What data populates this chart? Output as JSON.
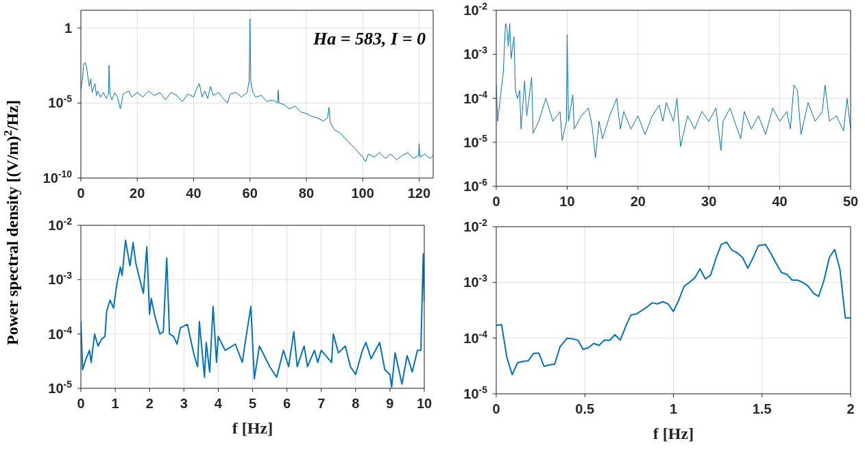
{
  "chart_data": [
    {
      "type": "line",
      "log": "y",
      "grid": true,
      "ylabel": "Power spectral density [(V/m)$^{2}$/Hz]",
      "annotations": [
        "Ha = 583, I = 0"
      ],
      "xlim": [
        0,
        125
      ],
      "xticks": [
        0,
        20,
        40,
        60,
        80,
        100,
        120
      ],
      "ylim": [
        1e-10,
        15
      ],
      "yticks": [
        {
          "value": 1e-10,
          "label": "10$^{-10}$"
        },
        {
          "value": 1e-05,
          "label": "10$^{-5}$"
        },
        1
      ],
      "x": [
        0,
        0.5,
        1,
        1.5,
        2,
        2.5,
        3,
        3.5,
        4,
        5,
        5.5,
        6,
        7,
        8,
        9,
        9.8,
        10,
        10.3,
        11,
        12,
        13,
        14,
        15,
        17,
        18,
        20,
        22,
        24,
        26,
        28,
        30,
        32,
        34,
        36,
        38,
        40,
        41,
        42,
        43,
        44,
        45,
        46,
        47,
        49,
        50,
        52,
        53,
        55,
        57,
        59,
        59.7,
        60,
        60.3,
        61,
        62,
        64,
        66,
        68,
        69.8,
        70,
        70.3,
        72,
        74,
        76,
        78,
        80,
        82,
        84,
        86,
        87.5,
        88,
        88.5,
        90,
        92,
        94,
        96,
        98,
        100,
        101,
        102,
        104,
        106,
        108,
        110,
        112,
        114,
        116,
        118,
        119.8,
        120,
        120.3,
        122,
        124,
        125
      ],
      "series": [
        {
          "color": "#0072bd",
          "values": [
            7.9e-05,
            0.00032,
            0.004,
            0.005,
            0.0025,
            0.0005,
            0.000126,
            0.0004,
            5e-05,
            0.0002,
            3.2e-05,
            6.3e-05,
            2.5e-05,
            5e-05,
            2e-05,
            4e-05,
            0.0032,
            4e-05,
            1.6e-05,
            5e-05,
            2.5e-05,
            4e-06,
            4e-05,
            6.3e-05,
            2.5e-05,
            5e-05,
            2.5e-05,
            6.3e-05,
            3.2e-05,
            5e-05,
            1.6e-05,
            5e-05,
            3.2e-05,
            1.26e-05,
            4e-05,
            2.5e-05,
            7.9e-05,
            0.0002,
            2.5e-05,
            6.3e-05,
            2e-05,
            0.000126,
            3.2e-05,
            5e-05,
            2.5e-05,
            1e-05,
            4e-05,
            5e-05,
            2.5e-05,
            5e-05,
            0.00032,
            4,
            0.00025,
            5e-05,
            2.5e-05,
            3.2e-05,
            1.26e-05,
            1.6e-05,
            1e-05,
            7.1e-05,
            1e-05,
            7.9e-06,
            4e-06,
            6.3e-06,
            2.5e-06,
            2e-06,
            1.26e-06,
            1e-06,
            6.3e-07,
            1e-06,
            5e-06,
            5e-07,
            1.6e-07,
            1e-07,
            4e-08,
            1.6e-08,
            6.3e-09,
            2.5e-09,
            1.26e-09,
            4e-09,
            2.5e-09,
            5e-09,
            2e-09,
            4e-09,
            1.6e-09,
            3.2e-09,
            5e-09,
            2e-09,
            3.2e-09,
            2e-08,
            2.5e-09,
            4e-09,
            2e-09,
            3.2e-09
          ]
        }
      ]
    },
    {
      "type": "line",
      "log": "y",
      "grid": true,
      "xlim": [
        0,
        50
      ],
      "xticks": [
        0,
        10,
        20,
        30,
        40,
        50
      ],
      "ylim": [
        1e-06,
        0.01
      ],
      "yticks": [
        {
          "value": 1e-06,
          "label": "10$^{-6}$"
        },
        {
          "value": 1e-05,
          "label": "10$^{-5}$"
        },
        {
          "value": 0.0001,
          "label": "10$^{-4}$"
        },
        {
          "value": 0.001,
          "label": "10$^{-3}$"
        },
        {
          "value": 0.01,
          "label": "10$^{-2}$"
        }
      ],
      "x": [
        0,
        0.2,
        0.5,
        1,
        1.3,
        1.5,
        1.7,
        1.9,
        2.1,
        2.5,
        2.7,
        3,
        3.3,
        3.5,
        4,
        4.3,
        5,
        5.2,
        6,
        7,
        8,
        9,
        9.3,
        9.9,
        10,
        10.2,
        10.8,
        11,
        12,
        13,
        13.5,
        14,
        14.5,
        15,
        16,
        17,
        17.5,
        18,
        19,
        20,
        21,
        22,
        23,
        23.5,
        24,
        25,
        25.5,
        26,
        27,
        28,
        29,
        30,
        31,
        31.7,
        32,
        33,
        34,
        34.5,
        35,
        36,
        37,
        38,
        39,
        40,
        41,
        41.5,
        42,
        42.5,
        43,
        44,
        45,
        46,
        46.4,
        47,
        48,
        49,
        49.5,
        50
      ],
      "series": [
        {
          "color": "#0072bd",
          "values": [
            0.0002,
            3e-05,
            8e-05,
            0.0004,
            0.005,
            0.004,
            0.0015,
            0.005,
            0.0008,
            0.0025,
            0.00015,
            0.0001,
            0.00015,
            2e-05,
            0.00025,
            4e-05,
            0.0003,
            1.6e-05,
            3e-05,
            0.0001,
            3e-05,
            5e-05,
            1.1e-05,
            3e-05,
            0.0028,
            3e-05,
            0.00012,
            2e-05,
            4e-05,
            6e-05,
            2.5e-05,
            4.5e-06,
            3e-05,
            1.2e-05,
            4e-05,
            0.0001,
            2e-05,
            5e-05,
            2e-05,
            4e-05,
            1.5e-05,
            4e-05,
            7e-05,
            3e-05,
            8e-05,
            3e-05,
            0.0001,
            8e-06,
            4e-05,
            2e-05,
            5e-05,
            3e-05,
            6e-05,
            6.5e-06,
            3e-05,
            6e-05,
            2e-05,
            1.2e-05,
            5e-05,
            2e-05,
            4e-05,
            1.5e-05,
            6e-05,
            3e-05,
            5e-05,
            2e-05,
            0.0002,
            0.00015,
            1.5e-05,
            8e-05,
            3e-05,
            5e-05,
            0.0002,
            3e-05,
            4e-05,
            1.8e-05,
            0.0001,
            2e-05
          ]
        }
      ]
    },
    {
      "type": "line",
      "log": "y",
      "grid": true,
      "xlabel": "f [Hz]",
      "xlim": [
        0,
        10
      ],
      "xticks": [
        0,
        1,
        2,
        3,
        4,
        5,
        6,
        7,
        8,
        9,
        10
      ],
      "ylim": [
        1e-05,
        0.01
      ],
      "yticks": [
        {
          "value": 1e-05,
          "label": "10$^{-5}$"
        },
        {
          "value": 0.0001,
          "label": "10$^{-4}$"
        },
        {
          "value": 0.001,
          "label": "10$^{-3}$"
        },
        {
          "value": 0.01,
          "label": "10$^{-2}$"
        }
      ],
      "x": [
        0,
        0.05,
        0.15,
        0.25,
        0.3,
        0.4,
        0.5,
        0.6,
        0.7,
        0.75,
        0.85,
        0.95,
        1.05,
        1.15,
        1.2,
        1.3,
        1.43,
        1.52,
        1.6,
        1.7,
        1.82,
        1.92,
        2,
        2.05,
        2.15,
        2.3,
        2.4,
        2.5,
        2.58,
        2.7,
        2.8,
        2.9,
        3.1,
        3.3,
        3.4,
        3.45,
        3.6,
        3.65,
        3.75,
        3.85,
        3.95,
        4,
        4.2,
        4.5,
        4.7,
        4.8,
        4.95,
        5.05,
        5.2,
        5.5,
        5.7,
        5.9,
        6.05,
        6.2,
        6.3,
        6.5,
        6.6,
        6.8,
        6.9,
        7,
        7.3,
        7.35,
        7.5,
        7.7,
        7.85,
        8,
        8.2,
        8.3,
        8.45,
        8.7,
        8.85,
        9,
        9.05,
        9.15,
        9.35,
        9.5,
        9.65,
        9.8,
        9.9,
        9.97,
        10
      ],
      "series": [
        {
          "color": "#0072bd",
          "values": [
            0.00017,
            2.2e-05,
            3.5e-05,
            5e-05,
            3e-05,
            0.0001,
            6e-05,
            8e-05,
            9e-05,
            0.00026,
            0.00042,
            0.0003,
            0.00085,
            0.0017,
            0.0012,
            0.0053,
            0.0018,
            0.0048,
            0.002,
            0.0011,
            0.00056,
            0.004,
            0.00023,
            0.00045,
            0.00022,
            0.0001,
            0.00011,
            0.0025,
            0.0001,
            9e-05,
            6.5e-05,
            0.00013,
            0.00015,
            4e-05,
            2.5e-05,
            0.00017,
            1.6e-05,
            7e-05,
            2e-05,
            0.00032,
            3e-05,
            9e-05,
            5e-05,
            6.5e-05,
            3e-05,
            8e-05,
            0.00032,
            1.5e-05,
            6e-05,
            2.5e-05,
            1.6e-05,
            5e-05,
            2.5e-05,
            0.00011,
            2.5e-05,
            6e-05,
            2.5e-05,
            5e-05,
            3e-05,
            5e-05,
            3e-05,
            0.0001,
            4.5e-05,
            6e-05,
            2.5e-05,
            1.8e-05,
            5e-05,
            7e-05,
            3.5e-05,
            7e-05,
            2.2e-05,
            1.8e-05,
            1.05e-05,
            4.5e-05,
            1.2e-05,
            4e-05,
            2e-05,
            5e-05,
            5e-05,
            0.003,
            0.0004
          ]
        }
      ]
    },
    {
      "type": "line",
      "log": "y",
      "grid": true,
      "xlabel": "f [Hz]",
      "xlim": [
        0,
        2
      ],
      "xticks": [
        0,
        0.5,
        1,
        1.5,
        2
      ],
      "ylim": [
        1e-05,
        0.01
      ],
      "yticks": [
        {
          "value": 1e-05,
          "label": "10$^{-5}$"
        },
        {
          "value": 0.0001,
          "label": "10$^{-4}$"
        },
        {
          "value": 0.001,
          "label": "10$^{-3}$"
        },
        {
          "value": 0.01,
          "label": "10$^{-2}$"
        }
      ],
      "x": [
        0,
        0.03,
        0.06,
        0.09,
        0.12,
        0.15,
        0.18,
        0.21,
        0.24,
        0.27,
        0.3,
        0.33,
        0.36,
        0.4,
        0.43,
        0.46,
        0.49,
        0.52,
        0.55,
        0.58,
        0.61,
        0.64,
        0.67,
        0.7,
        0.73,
        0.76,
        0.79,
        0.82,
        0.85,
        0.88,
        0.91,
        0.94,
        0.97,
        1,
        1.03,
        1.06,
        1.09,
        1.12,
        1.15,
        1.18,
        1.21,
        1.24,
        1.27,
        1.3,
        1.33,
        1.36,
        1.39,
        1.42,
        1.45,
        1.48,
        1.52,
        1.55,
        1.58,
        1.61,
        1.64,
        1.67,
        1.7,
        1.73,
        1.76,
        1.79,
        1.82,
        1.85,
        1.88,
        1.91,
        1.94,
        1.97,
        2
      ],
      "series": [
        {
          "color": "#0072bd",
          "values": [
            0.00017,
            0.000175,
            4.5e-05,
            2.2e-05,
            3.6e-05,
            3.8e-05,
            3.9e-05,
            5.3e-05,
            5.4e-05,
            3.1e-05,
            3.3e-05,
            3.4e-05,
            7e-05,
            0.0001,
            9.7e-05,
            9.2e-05,
            6.3e-05,
            6.7e-05,
            8e-05,
            7.4e-05,
            9.2e-05,
            9.1e-05,
            0.000115,
            9.2e-05,
            0.00016,
            0.00026,
            0.00027,
            0.00031,
            0.00036,
            0.00043,
            0.00041,
            0.00045,
            0.00041,
            0.0003,
            0.00048,
            0.00085,
            0.001,
            0.0012,
            0.00175,
            0.00115,
            0.00135,
            0.0027,
            0.0048,
            0.0053,
            0.0038,
            0.0034,
            0.0028,
            0.0018,
            0.0028,
            0.0046,
            0.0048,
            0.0033,
            0.0022,
            0.0015,
            0.0014,
            0.0011,
            0.0011,
            0.001,
            0.00086,
            0.00064,
            0.00056,
            0.0011,
            0.0028,
            0.0039,
            0.0017,
            0.00023,
            0.00023
          ]
        }
      ]
    }
  ]
}
